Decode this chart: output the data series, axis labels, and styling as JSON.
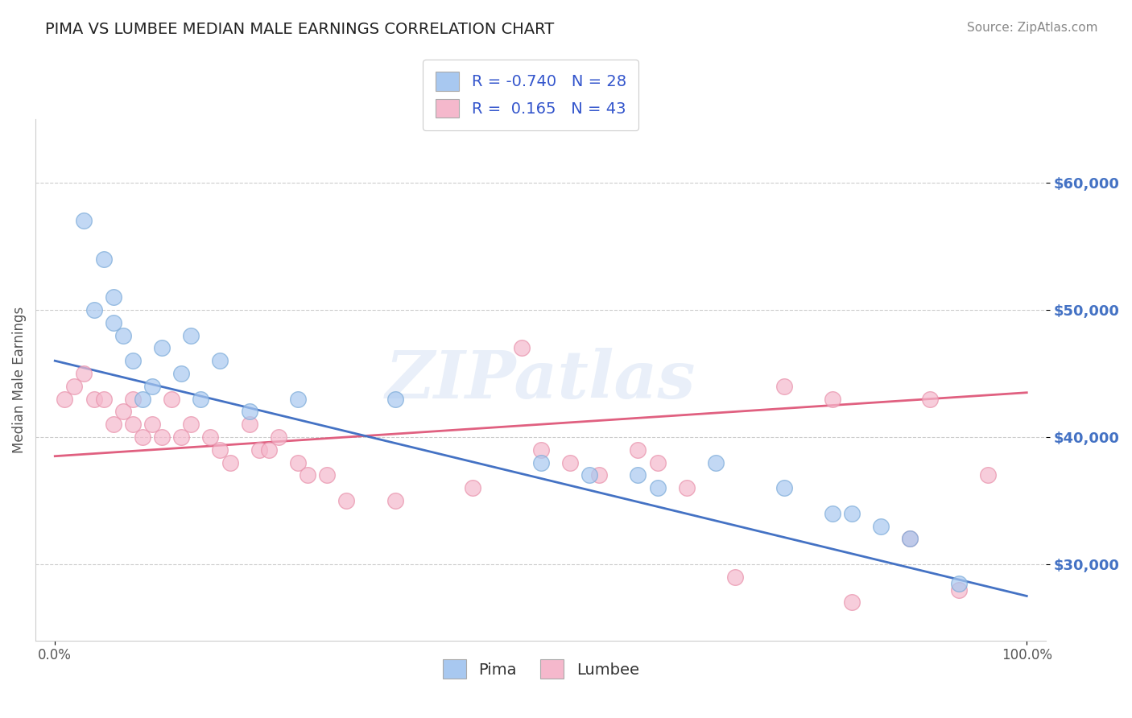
{
  "title": "PIMA VS LUMBEE MEDIAN MALE EARNINGS CORRELATION CHART",
  "source": "Source: ZipAtlas.com",
  "ylabel": "Median Male Earnings",
  "xlim": [
    -0.02,
    1.02
  ],
  "ylim": [
    24000,
    65000
  ],
  "yticks": [
    30000,
    40000,
    50000,
    60000
  ],
  "ytick_labels": [
    "$30,000",
    "$40,000",
    "$50,000",
    "$60,000"
  ],
  "xtick_positions": [
    0,
    1
  ],
  "xtick_labels": [
    "0.0%",
    "100.0%"
  ],
  "pima_color": "#a8c8f0",
  "lumbee_color": "#f5b8cc",
  "pima_edge_color": "#7aaad8",
  "lumbee_edge_color": "#e890aa",
  "pima_line_color": "#4472c4",
  "lumbee_line_color": "#e06080",
  "pima_R": -0.74,
  "pima_N": 28,
  "lumbee_R": 0.165,
  "lumbee_N": 43,
  "watermark": "ZIPatlas",
  "title_color": "#222222",
  "source_color": "#888888",
  "ylabel_color": "#555555",
  "ytick_color": "#4472c4",
  "grid_color": "#cccccc",
  "background_color": "#ffffff",
  "pima_x": [
    0.03,
    0.04,
    0.05,
    0.06,
    0.06,
    0.07,
    0.08,
    0.09,
    0.1,
    0.11,
    0.13,
    0.14,
    0.15,
    0.17,
    0.2,
    0.25,
    0.35,
    0.5,
    0.55,
    0.6,
    0.62,
    0.68,
    0.75,
    0.8,
    0.82,
    0.85,
    0.88,
    0.93
  ],
  "pima_y": [
    57000,
    50000,
    54000,
    51000,
    49000,
    48000,
    46000,
    43000,
    44000,
    47000,
    45000,
    48000,
    43000,
    46000,
    42000,
    43000,
    43000,
    38000,
    37000,
    37000,
    36000,
    38000,
    36000,
    34000,
    34000,
    33000,
    32000,
    28500
  ],
  "lumbee_x": [
    0.01,
    0.02,
    0.03,
    0.04,
    0.05,
    0.06,
    0.07,
    0.08,
    0.08,
    0.09,
    0.1,
    0.11,
    0.12,
    0.13,
    0.14,
    0.16,
    0.17,
    0.18,
    0.2,
    0.21,
    0.22,
    0.23,
    0.25,
    0.26,
    0.28,
    0.3,
    0.35,
    0.43,
    0.48,
    0.5,
    0.53,
    0.56,
    0.6,
    0.62,
    0.65,
    0.7,
    0.75,
    0.8,
    0.82,
    0.88,
    0.9,
    0.93,
    0.96
  ],
  "lumbee_y": [
    43000,
    44000,
    45000,
    43000,
    43000,
    41000,
    42000,
    41000,
    43000,
    40000,
    41000,
    40000,
    43000,
    40000,
    41000,
    40000,
    39000,
    38000,
    41000,
    39000,
    39000,
    40000,
    38000,
    37000,
    37000,
    35000,
    35000,
    36000,
    47000,
    39000,
    38000,
    37000,
    39000,
    38000,
    36000,
    29000,
    44000,
    43000,
    27000,
    32000,
    43000,
    28000,
    37000
  ]
}
